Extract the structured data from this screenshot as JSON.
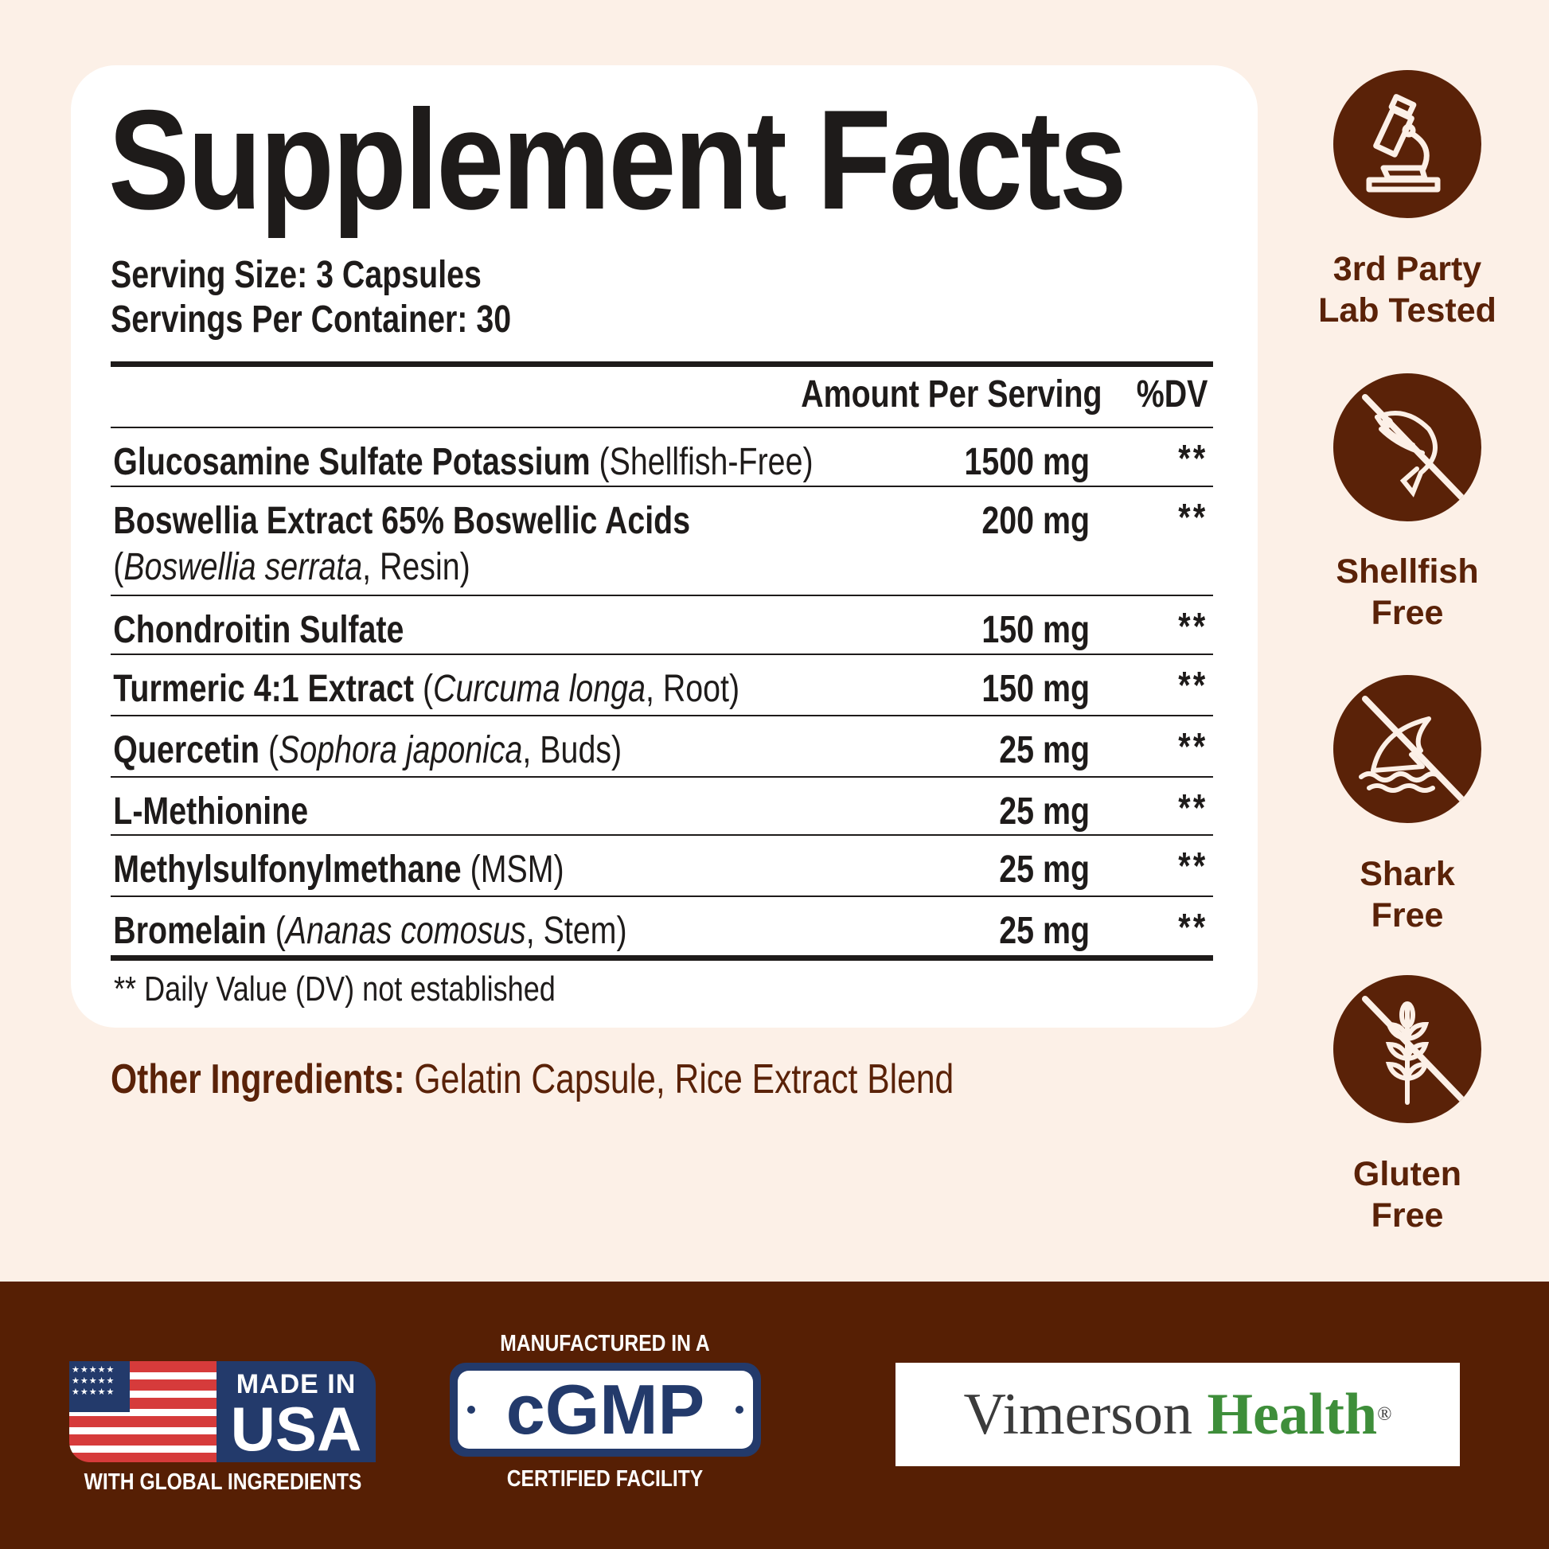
{
  "title": "Supplement Facts",
  "serving_size": "Serving Size: 3 Capsules",
  "servings_per_container": "Servings Per Container: 30",
  "header": {
    "amount": "Amount Per Serving",
    "dv": "%DV"
  },
  "rows": [
    {
      "name": "Glucosamine Sulfate Potassium",
      "detail": "(Shellfish-Free)",
      "amount": "1500 mg",
      "dv": "**"
    },
    {
      "name": "Boswellia Extract 65% Boswellic Acids",
      "open": "(",
      "latin": "Boswellia serrata",
      "part": ", Resin)",
      "amount": "200 mg",
      "dv": "**"
    },
    {
      "name": "Chondroitin Sulfate",
      "amount": "150 mg",
      "dv": "**"
    },
    {
      "name": "Turmeric 4:1 Extract",
      "open": " (",
      "latin": "Curcuma longa",
      "part": ", Root)",
      "amount": "150 mg",
      "dv": "**"
    },
    {
      "name": "Quercetin",
      "open": " (",
      "latin": "Sophora japonica",
      "part": ", Buds)",
      "amount": "25 mg",
      "dv": "**"
    },
    {
      "name": "L-Methionine",
      "amount": "25 mg",
      "dv": "**"
    },
    {
      "name": "Methylsulfonylmethane",
      "detail": "(MSM)",
      "amount": "25 mg",
      "dv": "**"
    },
    {
      "name": "Bromelain",
      "open": " (",
      "latin": "Ananas comosus",
      "part": ", Stem)",
      "amount": "25 mg",
      "dv": "**"
    }
  ],
  "footnote": "** Daily Value (DV) not established",
  "other_ingredients": {
    "label": "Other Ingredients:",
    "value": " Gelatin Capsule, Rice Extract Blend"
  },
  "badges": [
    {
      "icon": "microscope-icon",
      "line1": "3rd Party",
      "line2": "Lab Tested"
    },
    {
      "icon": "shrimp-crossed-icon",
      "line1": "Shellfish",
      "line2": "Free"
    },
    {
      "icon": "shark-fin-crossed-icon",
      "line1": "Shark",
      "line2": "Free"
    },
    {
      "icon": "wheat-crossed-icon",
      "line1": "Gluten",
      "line2": "Free"
    }
  ],
  "footer": {
    "usa": {
      "top": "MADE IN",
      "big": "USA",
      "bottom": "WITH GLOBAL INGREDIENTS"
    },
    "cgmp": {
      "top": "MANUFACTURED IN A",
      "big": "cGMP",
      "bottom": "CERTIFIED FACILITY"
    },
    "brand": {
      "part1": "Vimerson",
      "part2": "Health",
      "mark": "®"
    }
  },
  "colors": {
    "background": "#fcf0e7",
    "brown": "#5a2208",
    "navy": "#233a6b",
    "green": "#3e8e3a"
  }
}
